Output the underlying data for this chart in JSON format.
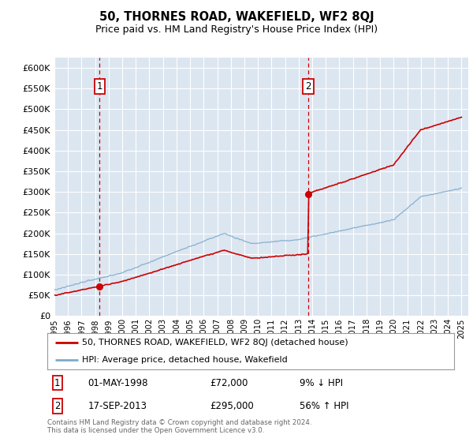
{
  "title": "50, THORNES ROAD, WAKEFIELD, WF2 8QJ",
  "subtitle": "Price paid vs. HM Land Registry's House Price Index (HPI)",
  "legend_line1": "50, THORNES ROAD, WAKEFIELD, WF2 8QJ (detached house)",
  "legend_line2": "HPI: Average price, detached house, Wakefield",
  "sale1_date": "01-MAY-1998",
  "sale1_price": "£72,000",
  "sale1_hpi": "9% ↓ HPI",
  "sale2_date": "17-SEP-2013",
  "sale2_price": "£295,000",
  "sale2_hpi": "56% ↑ HPI",
  "footnote": "Contains HM Land Registry data © Crown copyright and database right 2024.\nThis data is licensed under the Open Government Licence v3.0.",
  "ylim": [
    0,
    625000
  ],
  "yticks": [
    0,
    50000,
    100000,
    150000,
    200000,
    250000,
    300000,
    350000,
    400000,
    450000,
    500000,
    550000,
    600000
  ],
  "sale1_year": 1998.33,
  "sale1_value": 72000,
  "sale2_year": 2013.71,
  "sale2_value": 295000,
  "plot_bg": "#dce6f1",
  "line_color_red": "#cc0000",
  "line_color_blue": "#7eaacb",
  "vline_color": "#cc0000",
  "grid_color": "#ffffff",
  "box_color": "#cc0000"
}
